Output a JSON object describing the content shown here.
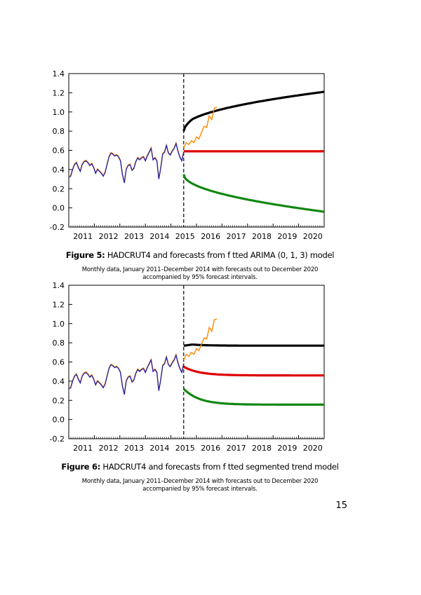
{
  "page_number": "15",
  "chart_data": [
    {
      "type": "line",
      "figure_label": "Figure 5:",
      "caption": "HADCRUT4 and forecasts from f tted ARIMA (0, 1, 3) model",
      "subcaption_line1": "Monthly data, January 2011–December 2014 with forecasts out to December 2020",
      "subcaption_line2": "accompanied by 95% forecast intervals.",
      "x_ticks": [
        "2011",
        "2012",
        "2013",
        "2014",
        "2015",
        "2016",
        "2017",
        "2018",
        "2019",
        "2020"
      ],
      "y_ticks": [
        "-0.2",
        "0.0",
        "0.2",
        "0.4",
        "0.6",
        "0.8",
        "1.0",
        "1.2",
        "1.4"
      ],
      "xlim": [
        2010.5,
        2020.5
      ],
      "ylim": [
        -0.2,
        1.4
      ],
      "forecast_origin": 2015.0,
      "observed": [
        0.32,
        0.33,
        0.4,
        0.45,
        0.47,
        0.42,
        0.38,
        0.45,
        0.48,
        0.49,
        0.47,
        0.44,
        0.46,
        0.42,
        0.36,
        0.4,
        0.38,
        0.36,
        0.33,
        0.37,
        0.45,
        0.53,
        0.57,
        0.56,
        0.54,
        0.55,
        0.53,
        0.49,
        0.35,
        0.26,
        0.4,
        0.44,
        0.45,
        0.39,
        0.41,
        0.48,
        0.52,
        0.5,
        0.52,
        0.53,
        0.49,
        0.54,
        0.58,
        0.62,
        0.5,
        0.52,
        0.49,
        0.3,
        0.41,
        0.56,
        0.58,
        0.65,
        0.57,
        0.55,
        0.59,
        0.62,
        0.67,
        0.59,
        0.53,
        0.49,
        0.58
      ],
      "observed_color": "#2222aa",
      "extension": [
        {
          "x": 2015.0,
          "y": 0.62
        },
        {
          "x": 2015.1,
          "y": 0.68
        },
        {
          "x": 2015.2,
          "y": 0.66
        },
        {
          "x": 2015.3,
          "y": 0.7
        },
        {
          "x": 2015.4,
          "y": 0.68
        },
        {
          "x": 2015.5,
          "y": 0.74
        },
        {
          "x": 2015.6,
          "y": 0.72
        },
        {
          "x": 2015.7,
          "y": 0.79
        },
        {
          "x": 2015.8,
          "y": 0.85
        },
        {
          "x": 2015.9,
          "y": 0.84
        },
        {
          "x": 2016.0,
          "y": 0.96
        },
        {
          "x": 2016.1,
          "y": 0.92
        },
        {
          "x": 2016.2,
          "y": 1.04
        },
        {
          "x": 2016.3,
          "y": 1.05
        }
      ],
      "extension_color": "#ff8800",
      "upper": {
        "start": 0.83,
        "end": 1.21,
        "shape": "sqrt",
        "bump": 0.03,
        "color": "#000000"
      },
      "central": {
        "start": 0.59,
        "end": 0.59,
        "color": "#dd0000"
      },
      "lower": {
        "start": 0.35,
        "end": -0.04,
        "shape": "sqrt",
        "color": "#118811"
      }
    },
    {
      "type": "line",
      "figure_label": "Figure 6:",
      "caption": "HADCRUT4 and forecasts from f tted segmented trend model",
      "subcaption_line1": "Monthly data, January 2011–December 2014 with forecasts out to December 2020",
      "subcaption_line2": "accompanied by 95% forecast intervals.",
      "x_ticks": [
        "2011",
        "2012",
        "2013",
        "2014",
        "2015",
        "2016",
        "2017",
        "2018",
        "2019",
        "2020"
      ],
      "y_ticks": [
        "-0.2",
        "0.0",
        "0.2",
        "0.4",
        "0.6",
        "0.8",
        "1.0",
        "1.2",
        "1.4"
      ],
      "xlim": [
        2010.5,
        2020.5
      ],
      "ylim": [
        -0.2,
        1.4
      ],
      "forecast_origin": 2015.0,
      "observed": [
        0.32,
        0.33,
        0.4,
        0.45,
        0.47,
        0.42,
        0.38,
        0.45,
        0.48,
        0.49,
        0.47,
        0.44,
        0.46,
        0.42,
        0.36,
        0.4,
        0.38,
        0.36,
        0.33,
        0.37,
        0.45,
        0.53,
        0.57,
        0.56,
        0.54,
        0.55,
        0.53,
        0.49,
        0.35,
        0.26,
        0.4,
        0.44,
        0.45,
        0.39,
        0.41,
        0.48,
        0.52,
        0.5,
        0.52,
        0.53,
        0.49,
        0.54,
        0.58,
        0.62,
        0.5,
        0.52,
        0.49,
        0.3,
        0.41,
        0.56,
        0.58,
        0.65,
        0.57,
        0.55,
        0.59,
        0.62,
        0.67,
        0.59,
        0.53,
        0.49,
        0.58
      ],
      "observed_color": "#2222aa",
      "extension": [
        {
          "x": 2015.0,
          "y": 0.62
        },
        {
          "x": 2015.1,
          "y": 0.68
        },
        {
          "x": 2015.2,
          "y": 0.66
        },
        {
          "x": 2015.3,
          "y": 0.7
        },
        {
          "x": 2015.4,
          "y": 0.68
        },
        {
          "x": 2015.5,
          "y": 0.74
        },
        {
          "x": 2015.6,
          "y": 0.72
        },
        {
          "x": 2015.7,
          "y": 0.79
        },
        {
          "x": 2015.8,
          "y": 0.85
        },
        {
          "x": 2015.9,
          "y": 0.84
        },
        {
          "x": 2016.0,
          "y": 0.96
        },
        {
          "x": 2016.1,
          "y": 0.92
        },
        {
          "x": 2016.2,
          "y": 1.04
        },
        {
          "x": 2016.3,
          "y": 1.05
        }
      ],
      "extension_color": "#ff8800",
      "upper": {
        "start": 0.79,
        "end": 0.77,
        "shape": "decay",
        "bump": 0.02,
        "color": "#000000"
      },
      "central": {
        "start": 0.55,
        "end": 0.46,
        "shape": "decay",
        "color": "#dd0000"
      },
      "lower": {
        "start": 0.32,
        "end": 0.155,
        "shape": "decay",
        "color": "#118811"
      }
    }
  ]
}
